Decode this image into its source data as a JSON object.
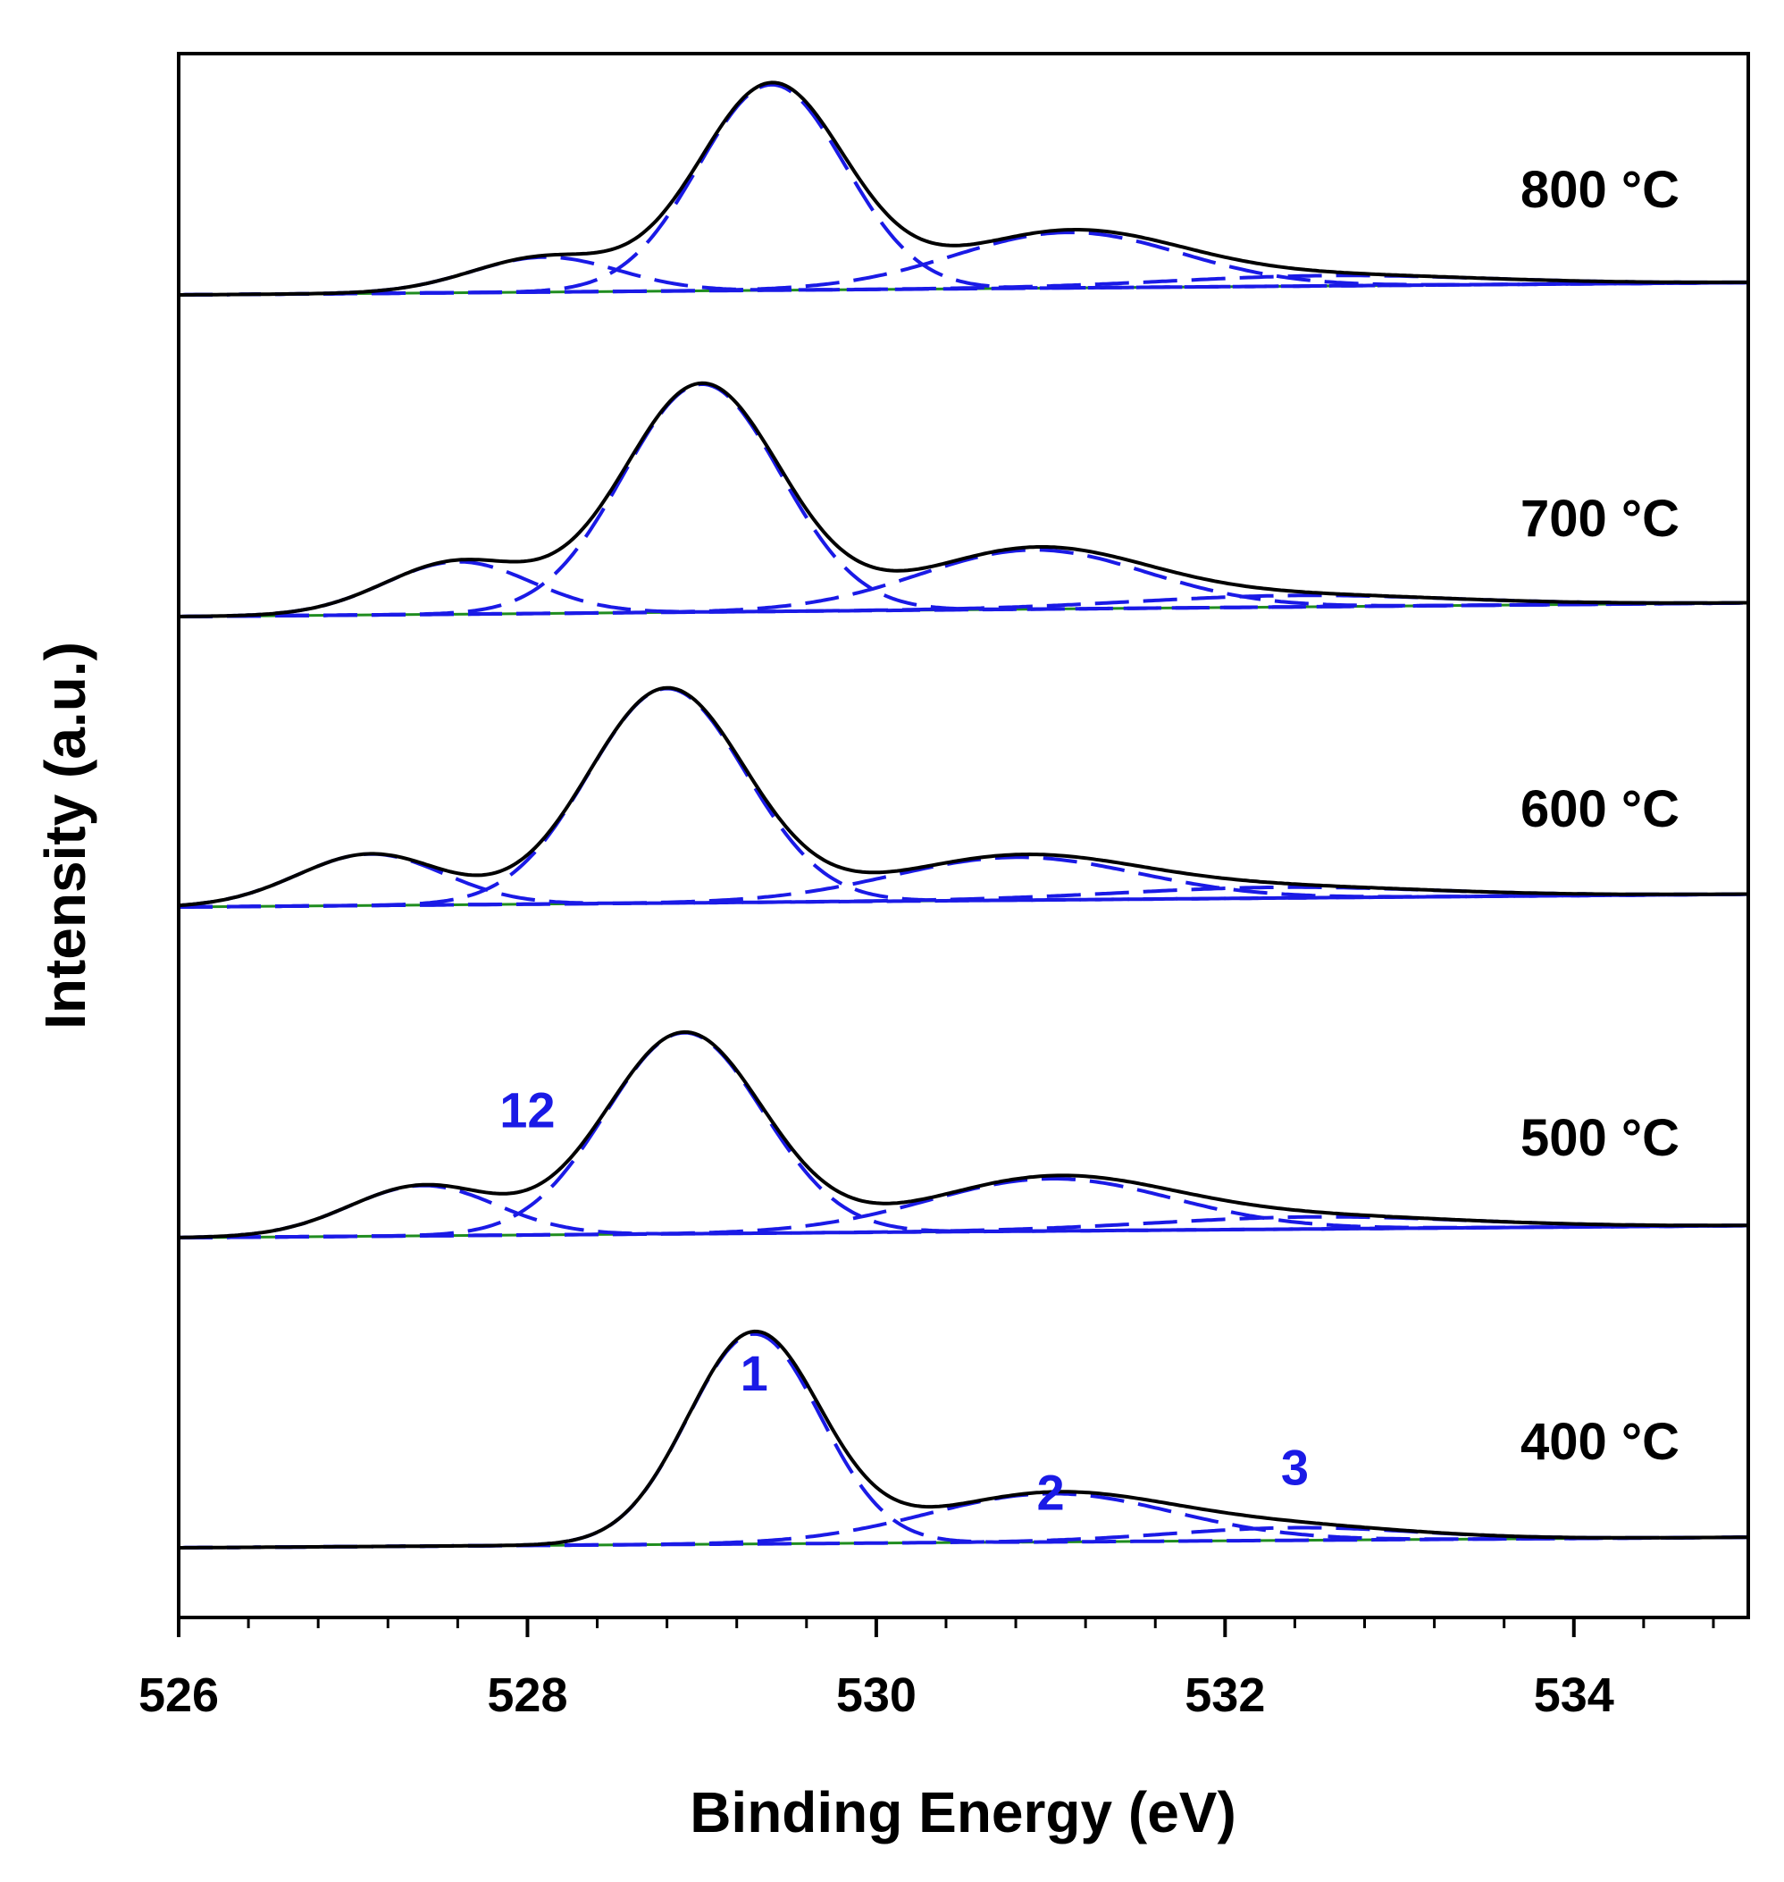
{
  "chart_data": {
    "type": "line",
    "title": "",
    "xlabel": "Binding Energy (eV)",
    "ylabel": "Intensity (a.u.)",
    "xlim": [
      526,
      535
    ],
    "xticks": [
      526,
      528,
      530,
      532,
      534
    ],
    "xtick_labels": [
      "526",
      "528",
      "530",
      "532",
      "534"
    ],
    "minor_tick_step": 0.4,
    "y_units": "arbitrary, stacked (offset) spectra",
    "grid": false,
    "colors": {
      "envelope": "#000000",
      "component": "#1a1ae6",
      "background": "#1f8c1f"
    },
    "series_styles": {
      "envelope": "solid black",
      "components": "dashed blue",
      "background": "solid green"
    },
    "spectra": [
      {
        "label": "800 °C",
        "background": [
          [
            526,
            0
          ],
          [
            535,
            0.06
          ]
        ],
        "components": [
          {
            "center": 528.1,
            "height": 0.17,
            "sigma": 0.42
          },
          {
            "center": 529.4,
            "height": 1.0,
            "sigma": 0.42
          },
          {
            "center": 531.1,
            "height": 0.27,
            "sigma": 0.65
          },
          {
            "center": 532.6,
            "height": 0.05,
            "sigma": 0.9
          }
        ]
      },
      {
        "label": "700 °C",
        "background": [
          [
            526,
            0
          ],
          [
            535,
            0.06
          ]
        ],
        "components": [
          {
            "center": 527.6,
            "height": 0.23,
            "sigma": 0.42
          },
          {
            "center": 529.0,
            "height": 1.0,
            "sigma": 0.45
          },
          {
            "center": 530.9,
            "height": 0.26,
            "sigma": 0.65
          },
          {
            "center": 532.4,
            "height": 0.05,
            "sigma": 0.9
          }
        ]
      },
      {
        "label": "600 °C",
        "background": [
          [
            526,
            0
          ],
          [
            535,
            0.06
          ]
        ],
        "components": [
          {
            "center": 527.1,
            "height": 0.24,
            "sigma": 0.42
          },
          {
            "center": 528.8,
            "height": 1.0,
            "sigma": 0.45
          },
          {
            "center": 530.8,
            "height": 0.2,
            "sigma": 0.7
          },
          {
            "center": 532.3,
            "height": 0.05,
            "sigma": 0.9
          }
        ]
      },
      {
        "label": "500 °C",
        "background": [
          [
            526,
            0
          ],
          [
            535,
            0.06
          ]
        ],
        "components": [
          {
            "center": 527.4,
            "height": 0.25,
            "sigma": 0.42
          },
          {
            "center": 528.9,
            "height": 1.0,
            "sigma": 0.45
          },
          {
            "center": 531.0,
            "height": 0.26,
            "sigma": 0.7
          },
          {
            "center": 532.5,
            "height": 0.06,
            "sigma": 0.9
          }
        ]
      },
      {
        "label": "400 °C",
        "background": [
          [
            526,
            0
          ],
          [
            535,
            0.05
          ]
        ],
        "components": [
          {
            "center": 529.3,
            "height": 1.0,
            "sigma": 0.38
          },
          {
            "center": 531.0,
            "height": 0.23,
            "sigma": 0.7
          },
          {
            "center": 532.4,
            "height": 0.06,
            "sigma": 0.7
          }
        ]
      }
    ],
    "annotations": [
      {
        "text": "12",
        "spectrum": "500 °C",
        "x": 528.0,
        "y": 0.55
      },
      {
        "text": "1",
        "spectrum": "400 °C",
        "x": 529.3,
        "y": 0.75
      },
      {
        "text": "2",
        "spectrum": "400 °C",
        "x": 531.0,
        "y": 0.18
      },
      {
        "text": "3",
        "spectrum": "400 °C",
        "x": 532.4,
        "y": 0.3
      }
    ]
  }
}
